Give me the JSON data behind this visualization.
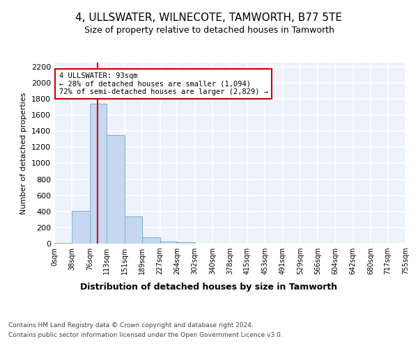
{
  "title": "4, ULLSWATER, WILNECOTE, TAMWORTH, B77 5TE",
  "subtitle": "Size of property relative to detached houses in Tamworth",
  "xlabel": "Distribution of detached houses by size in Tamworth",
  "ylabel": "Number of detached properties",
  "bar_edges": [
    0,
    38,
    76,
    113,
    151,
    189,
    227,
    264,
    302,
    340,
    378,
    415,
    453,
    491,
    529,
    566,
    604,
    642,
    680,
    717,
    755
  ],
  "bar_heights": [
    10,
    410,
    1740,
    1350,
    340,
    75,
    25,
    20,
    0,
    0,
    0,
    0,
    0,
    0,
    0,
    0,
    0,
    0,
    0,
    0
  ],
  "bar_color": "#c5d8f0",
  "bar_edge_color": "#7aadd4",
  "property_line_x": 93,
  "property_line_color": "#cc0000",
  "annotation_text": "4 ULLSWATER: 93sqm\n← 28% of detached houses are smaller (1,094)\n72% of semi-detached houses are larger (2,829) →",
  "annotation_box_color": "#cc0000",
  "ylim": [
    0,
    2250
  ],
  "yticks": [
    0,
    200,
    400,
    600,
    800,
    1000,
    1200,
    1400,
    1600,
    1800,
    2000,
    2200
  ],
  "background_color": "#eef2fa",
  "grid_color": "#ffffff",
  "footer_line1": "Contains HM Land Registry data © Crown copyright and database right 2024.",
  "footer_line2": "Contains public sector information licensed under the Open Government Licence v3.0.",
  "tick_labels": [
    "0sqm",
    "38sqm",
    "76sqm",
    "113sqm",
    "151sqm",
    "189sqm",
    "227sqm",
    "264sqm",
    "302sqm",
    "340sqm",
    "378sqm",
    "415sqm",
    "453sqm",
    "491sqm",
    "529sqm",
    "566sqm",
    "604sqm",
    "642sqm",
    "680sqm",
    "717sqm",
    "755sqm"
  ]
}
